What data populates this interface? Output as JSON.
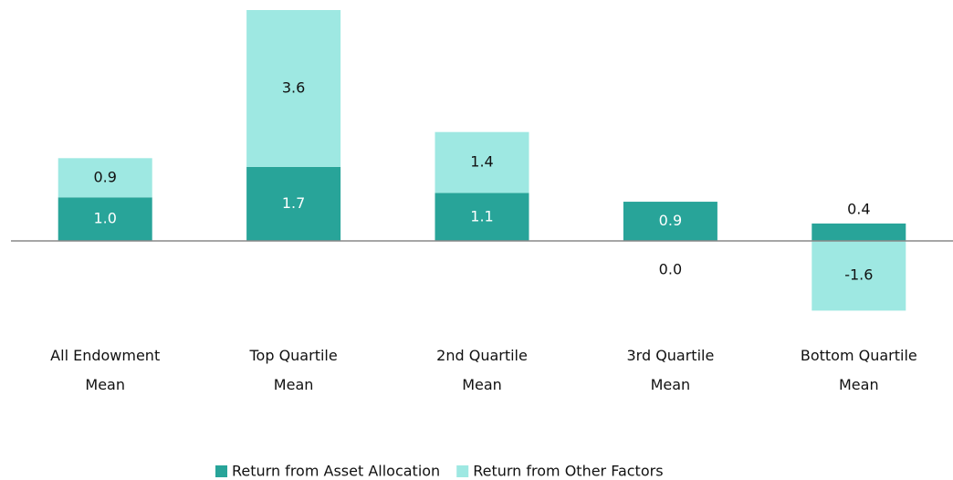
{
  "chart_data": {
    "type": "stacked_bar",
    "categories": [
      "All Endowment Mean",
      "Top Quartile Mean",
      "2nd Quartile Mean",
      "3rd Quartile Mean",
      "Bottom Quartile Mean"
    ],
    "series": [
      {
        "name": "Return from Asset Allocation",
        "color": "#28a499",
        "values": [
          1.0,
          1.7,
          1.1,
          0.9,
          0.4
        ],
        "value_labels": [
          "1.0",
          "1.7",
          "1.1",
          "0.9",
          "0.4"
        ]
      },
      {
        "name": "Return from Other Factors",
        "color": "#9ee8e2",
        "values": [
          0.9,
          3.6,
          1.4,
          0.0,
          -1.6
        ],
        "value_labels": [
          "0.9",
          "3.6",
          "1.4",
          "0.0",
          "-1.6"
        ]
      }
    ],
    "ylim": [
      -2,
      5.3
    ]
  }
}
